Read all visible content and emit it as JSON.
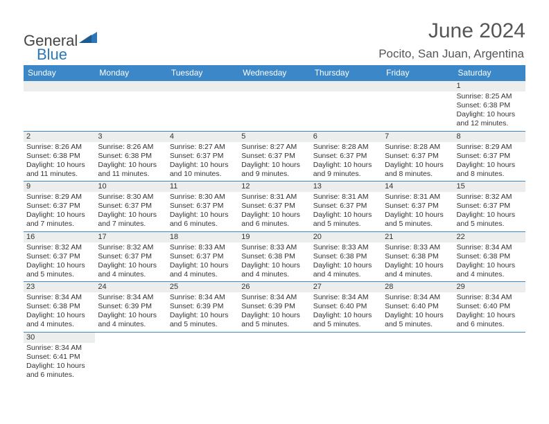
{
  "logo": {
    "part1": "General",
    "part2": "Blue"
  },
  "title": "June 2024",
  "location": "Pocito, San Juan, Argentina",
  "colors": {
    "header_bg": "#3b87c8",
    "header_text": "#ffffff",
    "daynum_bg": "#eceded",
    "cell_border": "#3b87c8",
    "logo_blue": "#2a76b9",
    "logo_gray": "#444444",
    "title_color": "#555555"
  },
  "weekday_labels": [
    "Sunday",
    "Monday",
    "Tuesday",
    "Wednesday",
    "Thursday",
    "Friday",
    "Saturday"
  ],
  "labels": {
    "sunrise": "Sunrise: ",
    "sunset": "Sunset: ",
    "daylight": "Daylight: "
  },
  "weeks": [
    [
      null,
      null,
      null,
      null,
      null,
      null,
      {
        "d": "1",
        "sr": "8:25 AM",
        "ss": "6:38 PM",
        "dl": "10 hours and 12 minutes."
      }
    ],
    [
      {
        "d": "2",
        "sr": "8:26 AM",
        "ss": "6:38 PM",
        "dl": "10 hours and 11 minutes."
      },
      {
        "d": "3",
        "sr": "8:26 AM",
        "ss": "6:38 PM",
        "dl": "10 hours and 11 minutes."
      },
      {
        "d": "4",
        "sr": "8:27 AM",
        "ss": "6:37 PM",
        "dl": "10 hours and 10 minutes."
      },
      {
        "d": "5",
        "sr": "8:27 AM",
        "ss": "6:37 PM",
        "dl": "10 hours and 9 minutes."
      },
      {
        "d": "6",
        "sr": "8:28 AM",
        "ss": "6:37 PM",
        "dl": "10 hours and 9 minutes."
      },
      {
        "d": "7",
        "sr": "8:28 AM",
        "ss": "6:37 PM",
        "dl": "10 hours and 8 minutes."
      },
      {
        "d": "8",
        "sr": "8:29 AM",
        "ss": "6:37 PM",
        "dl": "10 hours and 8 minutes."
      }
    ],
    [
      {
        "d": "9",
        "sr": "8:29 AM",
        "ss": "6:37 PM",
        "dl": "10 hours and 7 minutes."
      },
      {
        "d": "10",
        "sr": "8:30 AM",
        "ss": "6:37 PM",
        "dl": "10 hours and 7 minutes."
      },
      {
        "d": "11",
        "sr": "8:30 AM",
        "ss": "6:37 PM",
        "dl": "10 hours and 6 minutes."
      },
      {
        "d": "12",
        "sr": "8:31 AM",
        "ss": "6:37 PM",
        "dl": "10 hours and 6 minutes."
      },
      {
        "d": "13",
        "sr": "8:31 AM",
        "ss": "6:37 PM",
        "dl": "10 hours and 5 minutes."
      },
      {
        "d": "14",
        "sr": "8:31 AM",
        "ss": "6:37 PM",
        "dl": "10 hours and 5 minutes."
      },
      {
        "d": "15",
        "sr": "8:32 AM",
        "ss": "6:37 PM",
        "dl": "10 hours and 5 minutes."
      }
    ],
    [
      {
        "d": "16",
        "sr": "8:32 AM",
        "ss": "6:37 PM",
        "dl": "10 hours and 5 minutes."
      },
      {
        "d": "17",
        "sr": "8:32 AM",
        "ss": "6:37 PM",
        "dl": "10 hours and 4 minutes."
      },
      {
        "d": "18",
        "sr": "8:33 AM",
        "ss": "6:37 PM",
        "dl": "10 hours and 4 minutes."
      },
      {
        "d": "19",
        "sr": "8:33 AM",
        "ss": "6:38 PM",
        "dl": "10 hours and 4 minutes."
      },
      {
        "d": "20",
        "sr": "8:33 AM",
        "ss": "6:38 PM",
        "dl": "10 hours and 4 minutes."
      },
      {
        "d": "21",
        "sr": "8:33 AM",
        "ss": "6:38 PM",
        "dl": "10 hours and 4 minutes."
      },
      {
        "d": "22",
        "sr": "8:34 AM",
        "ss": "6:38 PM",
        "dl": "10 hours and 4 minutes."
      }
    ],
    [
      {
        "d": "23",
        "sr": "8:34 AM",
        "ss": "6:38 PM",
        "dl": "10 hours and 4 minutes."
      },
      {
        "d": "24",
        "sr": "8:34 AM",
        "ss": "6:39 PM",
        "dl": "10 hours and 4 minutes."
      },
      {
        "d": "25",
        "sr": "8:34 AM",
        "ss": "6:39 PM",
        "dl": "10 hours and 5 minutes."
      },
      {
        "d": "26",
        "sr": "8:34 AM",
        "ss": "6:39 PM",
        "dl": "10 hours and 5 minutes."
      },
      {
        "d": "27",
        "sr": "8:34 AM",
        "ss": "6:40 PM",
        "dl": "10 hours and 5 minutes."
      },
      {
        "d": "28",
        "sr": "8:34 AM",
        "ss": "6:40 PM",
        "dl": "10 hours and 5 minutes."
      },
      {
        "d": "29",
        "sr": "8:34 AM",
        "ss": "6:40 PM",
        "dl": "10 hours and 6 minutes."
      }
    ],
    [
      {
        "d": "30",
        "sr": "8:34 AM",
        "ss": "6:41 PM",
        "dl": "10 hours and 6 minutes."
      },
      null,
      null,
      null,
      null,
      null,
      null
    ]
  ]
}
